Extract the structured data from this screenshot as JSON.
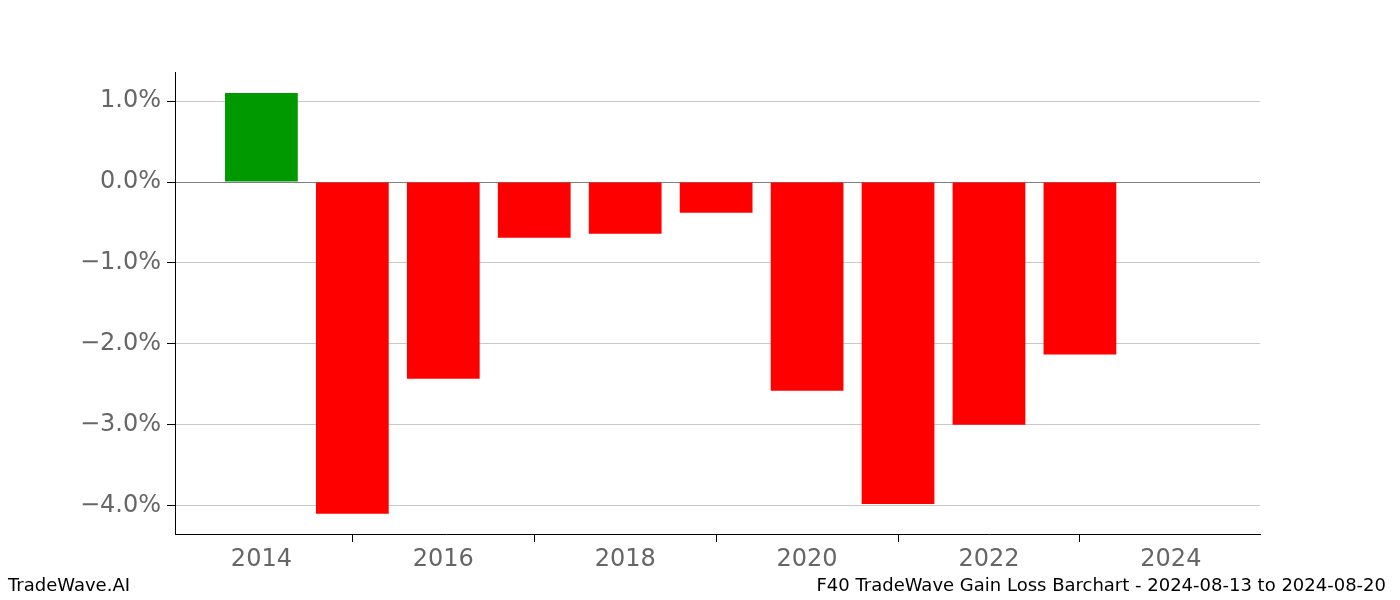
{
  "chart_data": {
    "type": "bar",
    "x": [
      2014,
      2015,
      2016,
      2017,
      2018,
      2019,
      2020,
      2021,
      2022,
      2023
    ],
    "values": [
      1.1,
      -4.1,
      -2.43,
      -0.69,
      -0.64,
      -0.38,
      -2.58,
      -3.98,
      -3.0,
      -2.13
    ],
    "colors": [
      "#009900",
      "#ff0000",
      "#ff0000",
      "#ff0000",
      "#ff0000",
      "#ff0000",
      "#ff0000",
      "#ff0000",
      "#ff0000",
      "#ff0000"
    ],
    "xlim": [
      2013.05,
      2024.98
    ],
    "xticks": [
      2014,
      2016,
      2018,
      2020,
      2022,
      2024
    ],
    "ylim": [
      -4.35,
      1.36
    ],
    "yticks": [
      {
        "value": -4,
        "label": "−4.0%"
      },
      {
        "value": -3,
        "label": "−3.0%"
      },
      {
        "value": -2,
        "label": "−2.0%"
      },
      {
        "value": -1,
        "label": "−1.0%"
      },
      {
        "value": 0,
        "label": "0.0%"
      },
      {
        "value": 1,
        "label": "1.0%"
      }
    ],
    "grid": true,
    "annotations": [
      "TradeWave.AI",
      "F40 TradeWave Gain Loss Barchart - 2024-08-13 to 2024-08-20"
    ]
  }
}
